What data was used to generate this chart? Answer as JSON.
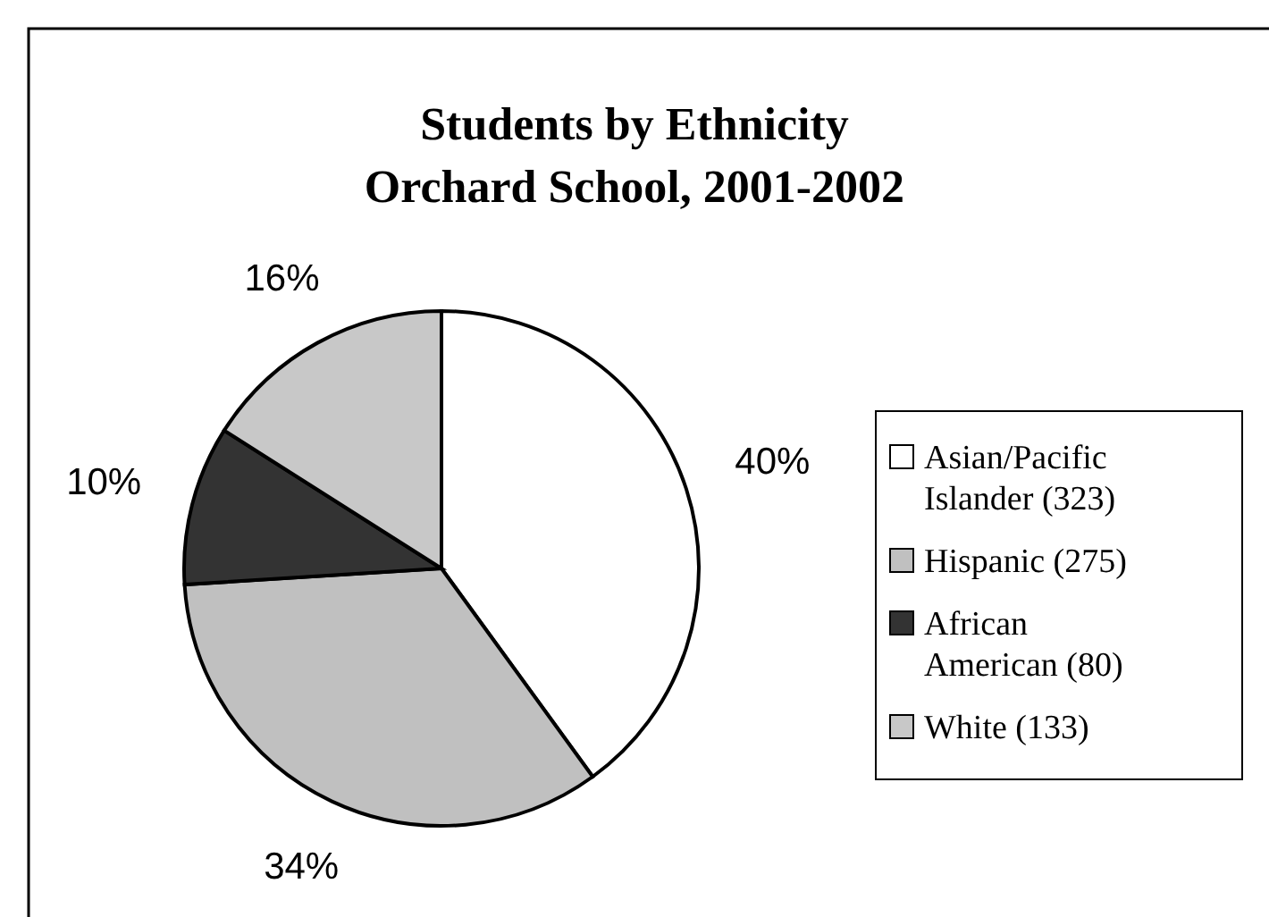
{
  "chart_data": {
    "type": "pie",
    "title": "Students by Ethnicity",
    "subtitle": "Orchard School, 2001-2002",
    "categories": [
      "Asian/Pacific Islander (323)",
      "Hispanic (275)",
      "African American (80)",
      "White (133)"
    ],
    "values": [
      40,
      34,
      10,
      16
    ],
    "value_labels": [
      "40%",
      "34%",
      "10%",
      "16%"
    ],
    "colors": [
      "#ffffff",
      "#c0c0c0",
      "#333333",
      "#c8c8c8"
    ],
    "legend": "right"
  }
}
